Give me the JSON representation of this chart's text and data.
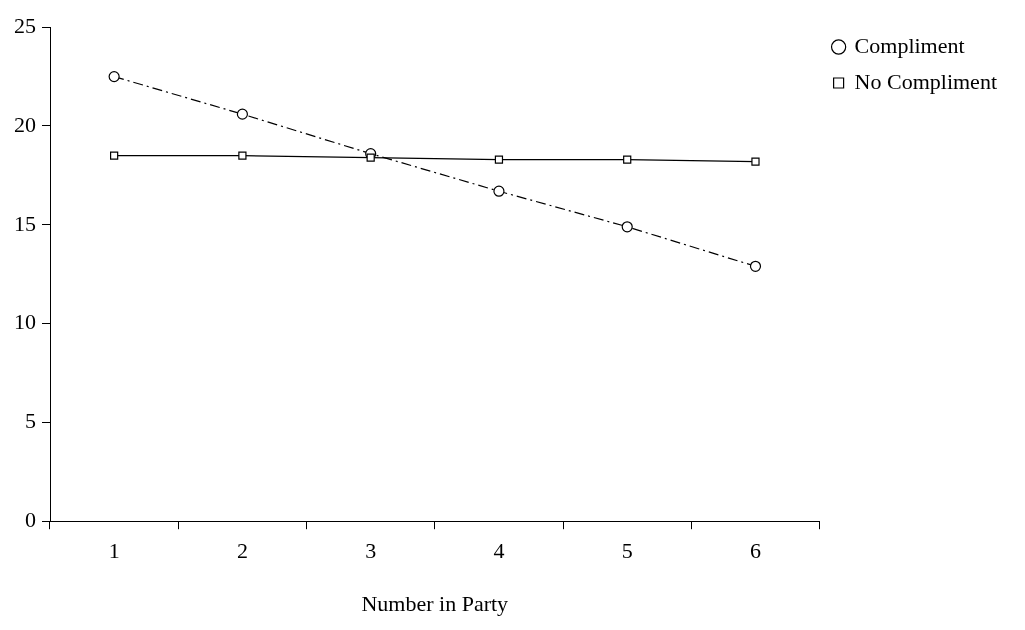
{
  "chart_data": {
    "type": "line",
    "xlabel": "Number in Party",
    "categories": [
      "1",
      "2",
      "3",
      "4",
      "5",
      "6"
    ],
    "series": [
      {
        "name": "Compliment",
        "color": "#000000",
        "values": [
          22.5,
          20.6,
          18.6,
          16.7,
          14.9,
          12.9
        ],
        "marker": "circle",
        "line_style": "dashdot"
      },
      {
        "name": "No Compliment",
        "color": "#000000",
        "values": [
          18.5,
          18.5,
          18.4,
          18.3,
          18.3,
          18.2
        ],
        "marker": "square",
        "line_style": "solid"
      }
    ],
    "ylim": [
      0,
      25
    ],
    "yticks": [
      0,
      5,
      10,
      15,
      20,
      25
    ],
    "grid": false,
    "legend": "right"
  }
}
